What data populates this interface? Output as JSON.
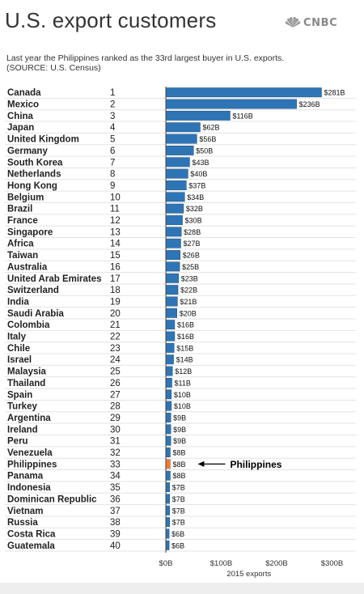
{
  "header": {
    "title": "U.S. export customers",
    "brand": "CNBC",
    "subtitle_lines": [
      "Last year the Philippines ranked as the 33rd largest buyer in U.S. exports.",
      "(SOURCE: U.S. Census)"
    ]
  },
  "colors": {
    "bar": "#2e75b6",
    "bar_stroke": "#1f4e79",
    "highlight": "#ed7d31",
    "row_divider": "#e3e3e3",
    "axis": "#444444"
  },
  "chart_data": {
    "type": "bar",
    "orientation": "horizontal",
    "categories": [
      "Canada",
      "Mexico",
      "China",
      "Japan",
      "United Kingdom",
      "Germany",
      "South Korea",
      "Netherlands",
      "Hong Kong",
      "Belgium",
      "Brazil",
      "France",
      "Singapore",
      "Africa",
      "Taiwan",
      "Australia",
      "United Arab Emirates",
      "Switzerland",
      "India",
      "Saudi Arabia",
      "Colombia",
      "Italy",
      "Chile",
      "Israel",
      "Malaysia",
      "Thailand",
      "Spain",
      "Turkey",
      "Argentina",
      "Ireland",
      "Peru",
      "Venezuela",
      "Philippines",
      "Panama",
      "Indonesia",
      "Dominican Republic",
      "Vietnam",
      "Russia",
      "Costa Rica",
      "Guatemala"
    ],
    "ranks": [
      "1",
      "2",
      "3",
      "4",
      "5",
      "6",
      "7",
      "8",
      "9",
      "10",
      "11",
      "12",
      "13",
      "14",
      "15",
      "16",
      "17",
      "18",
      "19",
      "20",
      "21",
      "22",
      "23",
      "24",
      "25",
      "26",
      "27",
      "28",
      "29",
      "30",
      "31",
      "32",
      "33",
      "34",
      "35",
      "36",
      "37",
      "38",
      "39",
      "40"
    ],
    "values": [
      281,
      236,
      116,
      62,
      56,
      50,
      43,
      40,
      37,
      34,
      32,
      30,
      28,
      27,
      26,
      25,
      23,
      22,
      21,
      20,
      16,
      16,
      15,
      14,
      12,
      11,
      10,
      10,
      9,
      9,
      9,
      8,
      8,
      8,
      7,
      7,
      7,
      7,
      6,
      6
    ],
    "value_labels": [
      "$281B",
      "$236B",
      "$116B",
      "$62B",
      "$56B",
      "$50B",
      "$43B",
      "$40B",
      "$37B",
      "$34B",
      "$32B",
      "$30B",
      "$28B",
      "$27B",
      "$26B",
      "$25B",
      "$23B",
      "$22B",
      "$21B",
      "$20B",
      "$16B",
      "$16B",
      "$15B",
      "$14B",
      "$12B",
      "$11B",
      "$10B",
      "$10B",
      "$9B",
      "$9B",
      "$9B",
      "$8B",
      "$8B",
      "$8B",
      "$7B",
      "$7B",
      "$7B",
      "$7B",
      "$6B",
      "$6B"
    ],
    "highlight_index": 32,
    "annotation": "Philippines",
    "xlim": [
      0,
      300
    ],
    "xticks": [
      0,
      100,
      200,
      300
    ],
    "xtick_labels": [
      "$0B",
      "$100B",
      "$200B",
      "$300B"
    ],
    "xlabel": "2015 exports",
    "grid": false
  }
}
